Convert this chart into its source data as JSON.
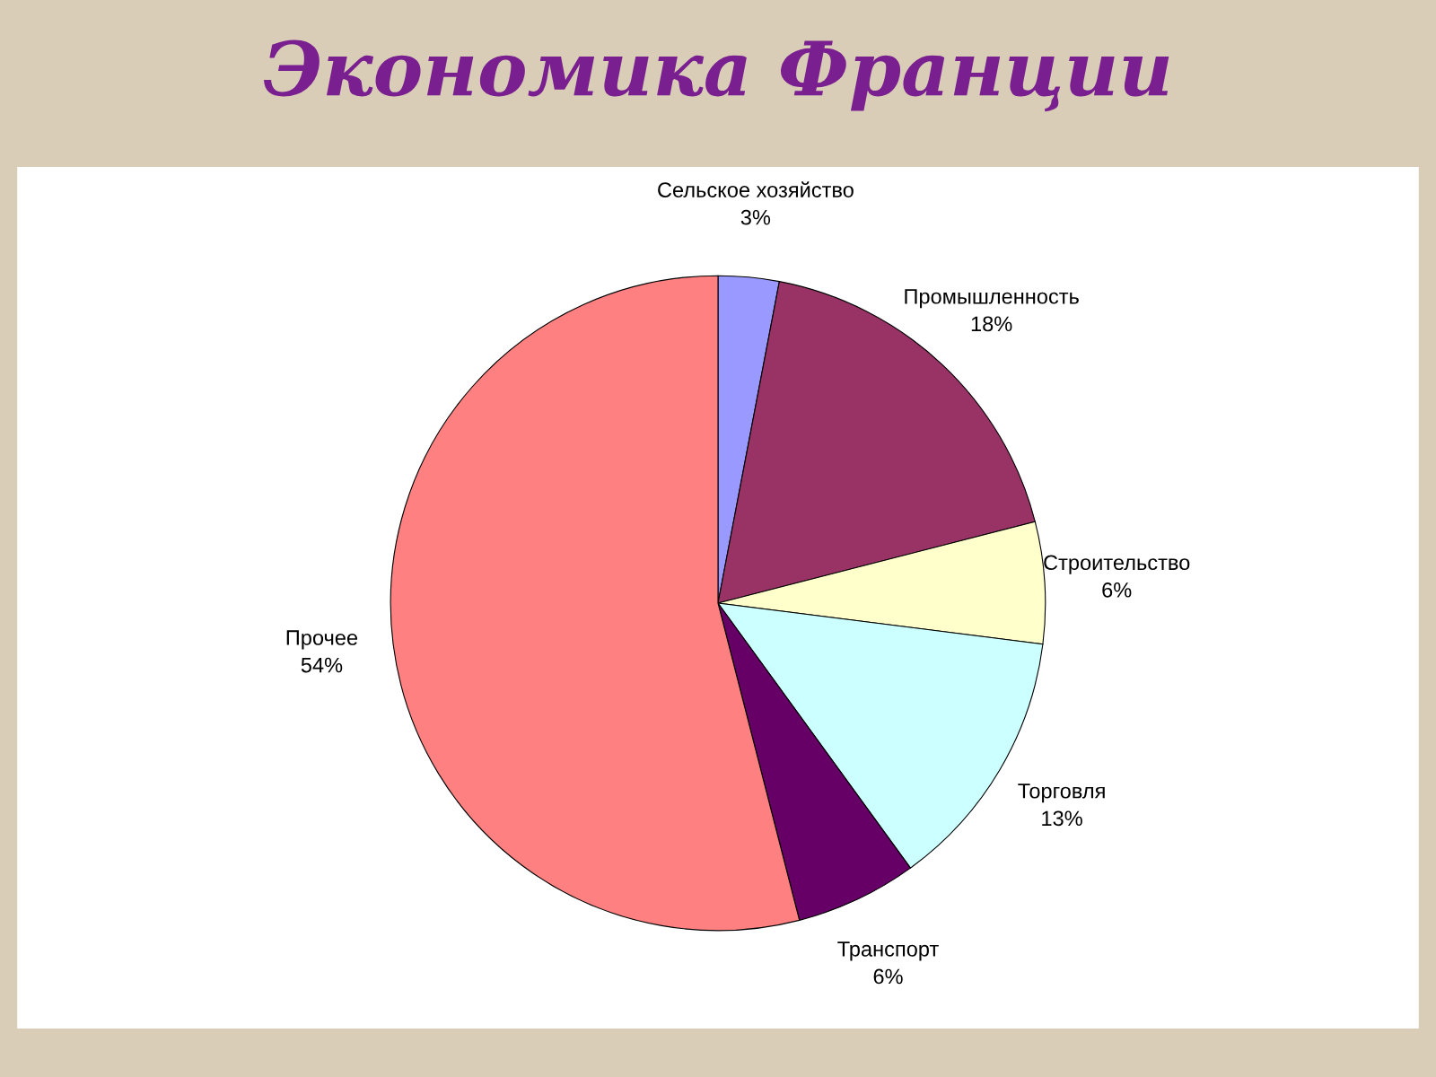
{
  "chart_data": {
    "type": "pie",
    "title": "Экономика Франции",
    "categories": [
      "Сельское хозяйство",
      "Промышленность",
      "Строительство",
      "Торговля",
      "Транспорт",
      "Прочее"
    ],
    "values": [
      3,
      18,
      6,
      13,
      6,
      54
    ],
    "value_labels": [
      "3%",
      "18%",
      "6%",
      "13%",
      "6%",
      "54%"
    ],
    "colors": [
      "#9999ff",
      "#993366",
      "#ffffcc",
      "#ccffff",
      "#660066",
      "#ff8080"
    ],
    "legend": false
  }
}
